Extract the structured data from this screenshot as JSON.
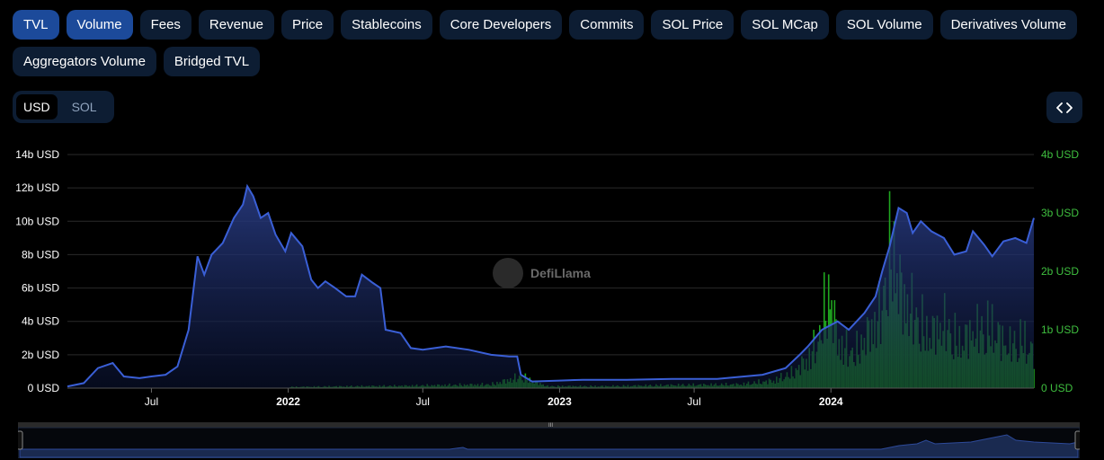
{
  "metric_tabs": [
    "TVL",
    "Volume",
    "Fees",
    "Revenue",
    "Price",
    "Stablecoins",
    "Core Developers",
    "Commits",
    "SOL Price",
    "SOL MCap",
    "SOL Volume",
    "Derivatives Volume",
    "Aggregators Volume",
    "Bridged TVL"
  ],
  "active_tabs": [
    "TVL",
    "Volume"
  ],
  "denomination": {
    "options": [
      "USD",
      "SOL"
    ],
    "selected": "USD"
  },
  "embed_icon": "code-brackets-icon",
  "watermark": "DefiLlama",
  "colors": {
    "tvl": "#3a5fd6",
    "volume": "#1fa01f",
    "active_chip": "#1c4a9a",
    "chip": "#0d1d33"
  },
  "chart_data": {
    "type": "line",
    "x_ticks": [
      "Jul",
      "2022",
      "Jul",
      "2023",
      "Jul",
      "2024"
    ],
    "y_left": {
      "ticks": [
        "0 USD",
        "2b USD",
        "4b USD",
        "6b USD",
        "8b USD",
        "10b USD",
        "12b USD",
        "14b USD"
      ],
      "range": [
        0,
        14
      ]
    },
    "y_right": {
      "ticks": [
        "0 USD",
        "1b USD",
        "2b USD",
        "3b USD",
        "4b USD"
      ],
      "range": [
        0,
        4
      ]
    },
    "x_range": [
      "2021-03-10",
      "2024-09-30"
    ],
    "series": [
      {
        "key": "tvl",
        "axis": "left",
        "unit": "b USD",
        "points": [
          [
            "2021-03-10",
            0.1
          ],
          [
            "2021-04-01",
            0.3
          ],
          [
            "2021-04-20",
            1.2
          ],
          [
            "2021-05-10",
            1.5
          ],
          [
            "2021-05-25",
            0.7
          ],
          [
            "2021-06-15",
            0.6
          ],
          [
            "2021-07-01",
            0.7
          ],
          [
            "2021-07-20",
            0.8
          ],
          [
            "2021-08-05",
            1.3
          ],
          [
            "2021-08-20",
            3.5
          ],
          [
            "2021-09-01",
            7.9
          ],
          [
            "2021-09-10",
            6.8
          ],
          [
            "2021-09-20",
            8.0
          ],
          [
            "2021-10-05",
            8.7
          ],
          [
            "2021-10-20",
            10.2
          ],
          [
            "2021-11-01",
            11.0
          ],
          [
            "2021-11-07",
            12.1
          ],
          [
            "2021-11-15",
            11.5
          ],
          [
            "2021-11-25",
            10.2
          ],
          [
            "2021-12-05",
            10.5
          ],
          [
            "2021-12-15",
            9.2
          ],
          [
            "2021-12-28",
            8.2
          ],
          [
            "2022-01-05",
            9.3
          ],
          [
            "2022-01-20",
            8.5
          ],
          [
            "2022-02-01",
            6.5
          ],
          [
            "2022-02-10",
            6.0
          ],
          [
            "2022-02-20",
            6.4
          ],
          [
            "2022-03-05",
            6.0
          ],
          [
            "2022-03-20",
            5.5
          ],
          [
            "2022-04-01",
            5.5
          ],
          [
            "2022-04-10",
            6.8
          ],
          [
            "2022-04-25",
            6.3
          ],
          [
            "2022-05-05",
            6.0
          ],
          [
            "2022-05-12",
            3.5
          ],
          [
            "2022-06-01",
            3.3
          ],
          [
            "2022-06-15",
            2.4
          ],
          [
            "2022-07-01",
            2.3
          ],
          [
            "2022-08-01",
            2.5
          ],
          [
            "2022-09-01",
            2.3
          ],
          [
            "2022-10-01",
            2.0
          ],
          [
            "2022-10-25",
            1.9
          ],
          [
            "2022-11-05",
            1.9
          ],
          [
            "2022-11-10",
            0.8
          ],
          [
            "2022-11-25",
            0.4
          ],
          [
            "2023-01-01",
            0.45
          ],
          [
            "2023-02-01",
            0.5
          ],
          [
            "2023-04-01",
            0.5
          ],
          [
            "2023-06-01",
            0.55
          ],
          [
            "2023-08-01",
            0.55
          ],
          [
            "2023-10-01",
            0.8
          ],
          [
            "2023-11-01",
            1.2
          ],
          [
            "2023-11-20",
            2.0
          ],
          [
            "2023-12-01",
            2.5
          ],
          [
            "2023-12-20",
            3.5
          ],
          [
            "2024-01-10",
            4.0
          ],
          [
            "2024-01-25",
            3.5
          ],
          [
            "2024-02-15",
            4.5
          ],
          [
            "2024-03-01",
            5.5
          ],
          [
            "2024-03-10",
            7.0
          ],
          [
            "2024-03-20",
            8.5
          ],
          [
            "2024-04-01",
            10.8
          ],
          [
            "2024-04-12",
            10.5
          ],
          [
            "2024-04-20",
            9.3
          ],
          [
            "2024-05-01",
            10.0
          ],
          [
            "2024-05-15",
            9.4
          ],
          [
            "2024-06-01",
            9.0
          ],
          [
            "2024-06-15",
            8.0
          ],
          [
            "2024-07-01",
            8.2
          ],
          [
            "2024-07-10",
            9.4
          ],
          [
            "2024-07-25",
            8.6
          ],
          [
            "2024-08-05",
            7.9
          ],
          [
            "2024-08-20",
            8.8
          ],
          [
            "2024-09-05",
            9.0
          ],
          [
            "2024-09-20",
            8.7
          ],
          [
            "2024-09-30",
            10.2
          ]
        ]
      },
      {
        "key": "volume",
        "axis": "right",
        "unit": "b USD",
        "points": [
          [
            "2022-01-01",
            0.03
          ],
          [
            "2022-04-01",
            0.05
          ],
          [
            "2022-06-01",
            0.06
          ],
          [
            "2022-08-01",
            0.08
          ],
          [
            "2022-10-01",
            0.1
          ],
          [
            "2022-11-09",
            0.3
          ],
          [
            "2022-12-15",
            0.05
          ],
          [
            "2023-03-01",
            0.05
          ],
          [
            "2023-06-01",
            0.08
          ],
          [
            "2023-09-01",
            0.1
          ],
          [
            "2023-10-15",
            0.2
          ],
          [
            "2023-11-10",
            0.4
          ],
          [
            "2023-12-01",
            0.8
          ],
          [
            "2023-12-15",
            1.3
          ],
          [
            "2023-12-28",
            2.6
          ],
          [
            "2024-01-10",
            1.2
          ],
          [
            "2024-02-01",
            0.9
          ],
          [
            "2024-03-05",
            1.9
          ],
          [
            "2024-03-15",
            2.9
          ],
          [
            "2024-03-22",
            3.8
          ],
          [
            "2024-04-05",
            2.4
          ],
          [
            "2024-04-20",
            2.0
          ],
          [
            "2024-05-10",
            1.4
          ],
          [
            "2024-06-01",
            1.7
          ],
          [
            "2024-06-20",
            1.2
          ],
          [
            "2024-07-10",
            1.5
          ],
          [
            "2024-08-05",
            1.6
          ],
          [
            "2024-08-25",
            1.1
          ],
          [
            "2024-09-15",
            1.3
          ],
          [
            "2024-09-30",
            0.9
          ]
        ]
      }
    ]
  }
}
